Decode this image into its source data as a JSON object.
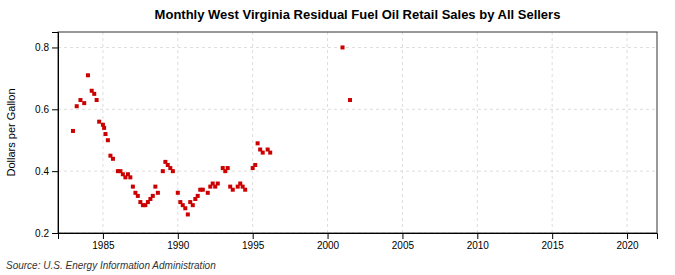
{
  "chart_data": {
    "type": "scatter",
    "title": "Monthly West Virginia Residual Fuel Oil Retail Sales by All Sellers",
    "ylabel": "Dollars per Gallon",
    "source": "Source: U.S. Energy Information Administration",
    "color": "#cc0000",
    "marker": "square",
    "grid": true,
    "xlim": [
      1982,
      2022
    ],
    "ylim": [
      0.2,
      0.85
    ],
    "xticks": [
      1985,
      1990,
      1995,
      2000,
      2005,
      2010,
      2015,
      2020
    ],
    "yticks": [
      0.2,
      0.4,
      0.6,
      0.8
    ],
    "x": [
      1983.0,
      1983.25,
      1983.5,
      1983.75,
      1984.0,
      1984.25,
      1984.42,
      1984.58,
      1984.75,
      1985.0,
      1985.08,
      1985.17,
      1985.33,
      1985.5,
      1985.67,
      1986.0,
      1986.17,
      1986.33,
      1986.5,
      1986.67,
      1986.83,
      1987.0,
      1987.17,
      1987.33,
      1987.5,
      1987.67,
      1987.83,
      1988.0,
      1988.17,
      1988.33,
      1988.5,
      1988.67,
      1989.0,
      1989.17,
      1989.33,
      1989.5,
      1989.67,
      1990.0,
      1990.17,
      1990.33,
      1990.5,
      1990.67,
      1990.83,
      1991.0,
      1991.17,
      1991.33,
      1991.5,
      1991.67,
      1992.0,
      1992.17,
      1992.33,
      1992.5,
      1992.67,
      1993.0,
      1993.17,
      1993.33,
      1993.5,
      1993.67,
      1994.0,
      1994.17,
      1994.33,
      1994.5,
      1995.0,
      1995.17,
      1995.33,
      1995.5,
      1995.67,
      1996.0,
      1996.17,
      2001.0,
      2001.5
    ],
    "values": [
      0.53,
      0.61,
      0.63,
      0.62,
      0.71,
      0.66,
      0.65,
      0.63,
      0.56,
      0.55,
      0.54,
      0.52,
      0.5,
      0.45,
      0.44,
      0.4,
      0.4,
      0.39,
      0.38,
      0.39,
      0.38,
      0.35,
      0.33,
      0.32,
      0.3,
      0.29,
      0.29,
      0.3,
      0.31,
      0.32,
      0.35,
      0.33,
      0.4,
      0.43,
      0.42,
      0.41,
      0.4,
      0.33,
      0.3,
      0.29,
      0.28,
      0.26,
      0.3,
      0.29,
      0.31,
      0.32,
      0.34,
      0.34,
      0.33,
      0.35,
      0.36,
      0.35,
      0.36,
      0.41,
      0.4,
      0.41,
      0.35,
      0.34,
      0.35,
      0.36,
      0.35,
      0.34,
      0.41,
      0.42,
      0.49,
      0.47,
      0.46,
      0.47,
      0.46,
      0.8,
      0.63
    ]
  }
}
